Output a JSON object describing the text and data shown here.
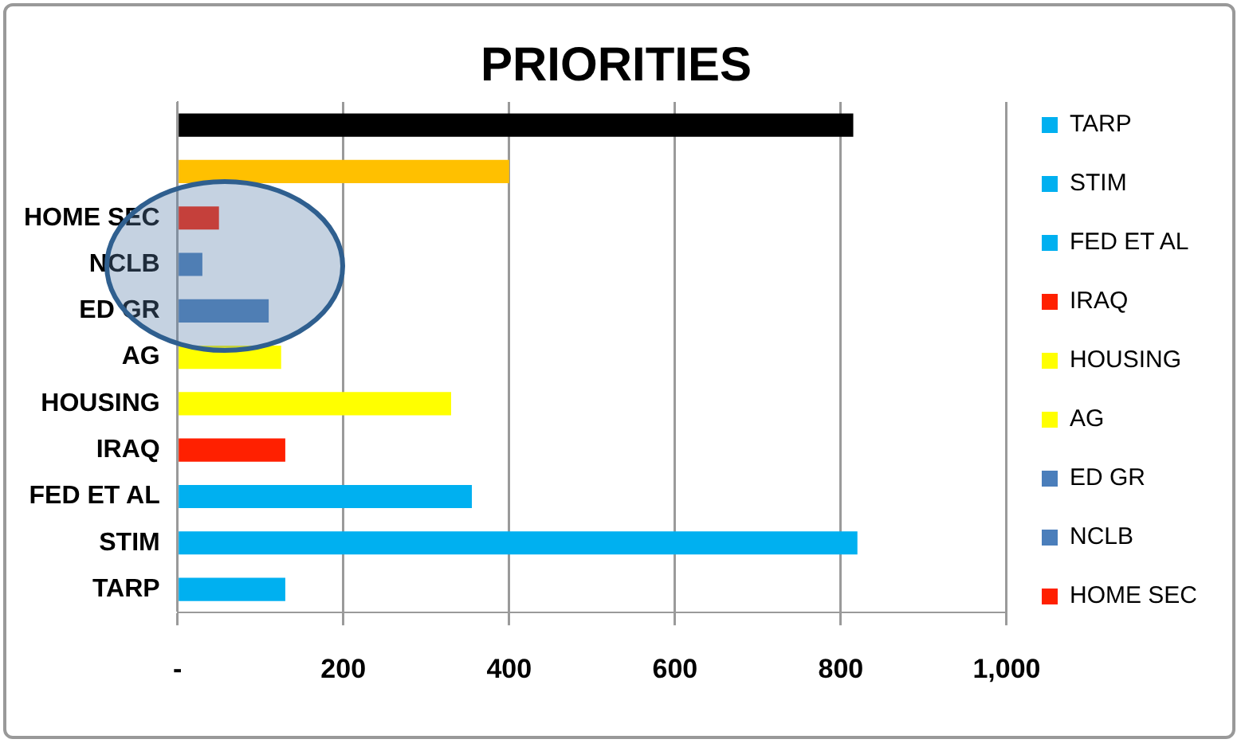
{
  "chart_data": {
    "type": "bar",
    "title": "PRIORITIES",
    "orientation": "horizontal",
    "categories": [
      null,
      null,
      "HOME SEC",
      "NCLB",
      "ED GR",
      "AG",
      "HOUSING",
      "IRAQ",
      "FED ET AL",
      "STIM",
      "TARP"
    ],
    "series": [
      {
        "colors": [
          "#000000",
          "#ffc000",
          null,
          null,
          null,
          null,
          null,
          null,
          null,
          null,
          null
        ],
        "values": [
          815,
          400,
          null,
          null,
          null,
          null,
          null,
          null,
          null,
          null,
          null
        ]
      },
      {
        "name": "TARP",
        "color": "#00b0f0",
        "values": [
          null,
          null,
          null,
          null,
          null,
          null,
          null,
          null,
          null,
          null,
          130
        ]
      },
      {
        "name": "STIM",
        "color": "#00b0f0",
        "values": [
          null,
          null,
          null,
          null,
          null,
          null,
          null,
          null,
          null,
          820,
          null
        ]
      },
      {
        "name": "FED ET AL",
        "color": "#00b0f0",
        "values": [
          null,
          null,
          null,
          null,
          null,
          null,
          null,
          null,
          355,
          null,
          null
        ]
      },
      {
        "name": "IRAQ",
        "color": "#ff2000",
        "values": [
          null,
          null,
          null,
          null,
          null,
          null,
          null,
          130,
          null,
          null,
          null
        ]
      },
      {
        "name": "HOUSING",
        "color": "#ffff00",
        "values": [
          null,
          null,
          null,
          null,
          null,
          null,
          330,
          null,
          null,
          null,
          null
        ]
      },
      {
        "name": "AG",
        "color": "#ffff00",
        "values": [
          null,
          null,
          null,
          null,
          null,
          125,
          null,
          null,
          null,
          null,
          null
        ]
      },
      {
        "name": "ED GR",
        "color": "#4a7ebb",
        "values": [
          null,
          null,
          null,
          null,
          110,
          null,
          null,
          null,
          null,
          null,
          null
        ]
      },
      {
        "name": "NCLB",
        "color": "#4a7ebb",
        "values": [
          null,
          null,
          null,
          30,
          null,
          null,
          null,
          null,
          null,
          null,
          null
        ]
      },
      {
        "name": "HOME SEC",
        "color": "#ff2000",
        "values": [
          null,
          null,
          50,
          null,
          null,
          null,
          null,
          null,
          null,
          null,
          null
        ]
      }
    ],
    "xlim": [
      0,
      1000
    ],
    "xticks": [
      {
        "value": 0,
        "label": "-"
      },
      200,
      400,
      600,
      800,
      {
        "value": 1000,
        "label": "1,000"
      }
    ],
    "grid": "x",
    "legend": "right"
  }
}
